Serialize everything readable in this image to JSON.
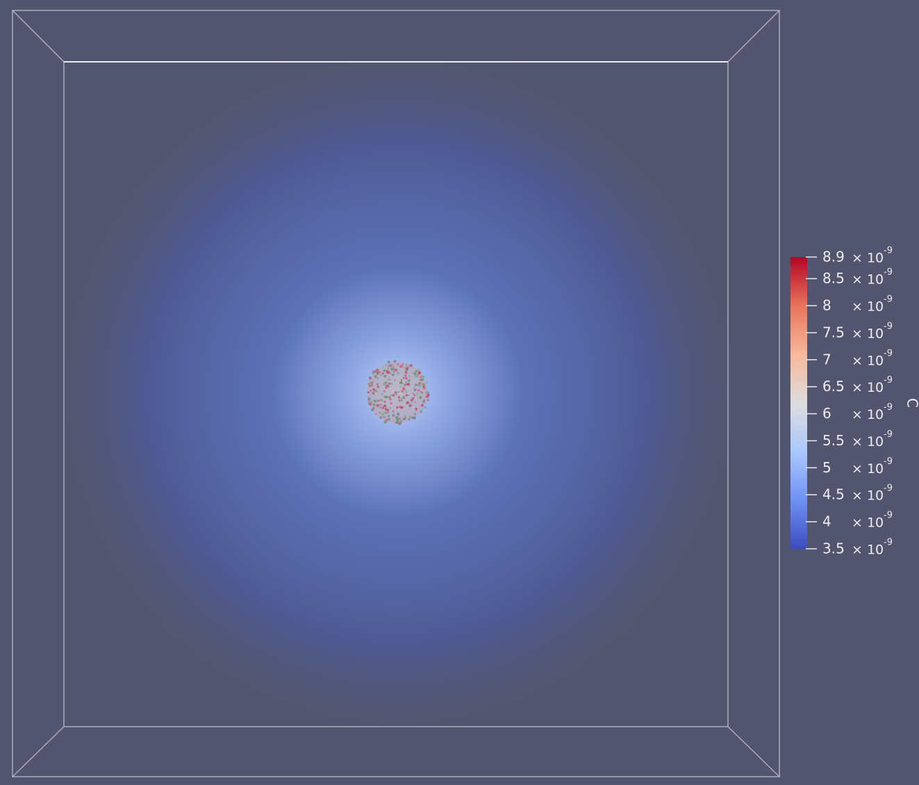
{
  "colorbar": {
    "title": "C",
    "range": [
      3.5e-09,
      8.9e-09
    ],
    "colors": [
      "#3b4cc0",
      "#6f92f3",
      "#aac7fd",
      "#dddddd",
      "#f7b89c",
      "#e7745b",
      "#b40426"
    ],
    "ticks": [
      {
        "value": 8.9e-09,
        "mantissa": "8.9",
        "base": "× 10",
        "exponent": "-9"
      },
      {
        "value": 8.5e-09,
        "mantissa": "8.5",
        "base": "× 10",
        "exponent": "-9"
      },
      {
        "value": 8e-09,
        "mantissa": "8",
        "base": "× 10",
        "exponent": "-9"
      },
      {
        "value": 7.5e-09,
        "mantissa": "7.5",
        "base": "× 10",
        "exponent": "-9"
      },
      {
        "value": 7e-09,
        "mantissa": "7",
        "base": "× 10",
        "exponent": "-9"
      },
      {
        "value": 6.5e-09,
        "mantissa": "6.5",
        "base": "× 10",
        "exponent": "-9"
      },
      {
        "value": 6e-09,
        "mantissa": "6",
        "base": "× 10",
        "exponent": "-9"
      },
      {
        "value": 5.5e-09,
        "mantissa": "5.5",
        "base": "× 10",
        "exponent": "-9"
      },
      {
        "value": 5e-09,
        "mantissa": "5",
        "base": "× 10",
        "exponent": "-9"
      },
      {
        "value": 4.5e-09,
        "mantissa": "4.5",
        "base": "× 10",
        "exponent": "-9"
      },
      {
        "value": 4e-09,
        "mantissa": "4",
        "base": "× 10",
        "exponent": "-9"
      },
      {
        "value": 3.5e-09,
        "mantissa": "3.5",
        "base": "× 10",
        "exponent": "-9"
      }
    ]
  }
}
